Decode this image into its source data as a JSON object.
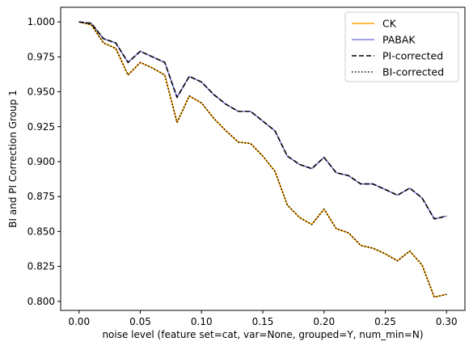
{
  "chart_data": {
    "type": "line",
    "xlabel": "noise level (feature set=cat, var=None, grouped=Y, num_min=N)",
    "ylabel": "BI and PI Correction Group 1",
    "xlim": [
      -0.015,
      0.315
    ],
    "ylim": [
      0.7935,
      1.0105
    ],
    "xticks": [
      0.0,
      0.05,
      0.1,
      0.15,
      0.2,
      0.25,
      0.3
    ],
    "xtick_labels": [
      "0.00",
      "0.05",
      "0.10",
      "0.15",
      "0.20",
      "0.25",
      "0.30"
    ],
    "yticks": [
      0.8,
      0.825,
      0.85,
      0.875,
      0.9,
      0.925,
      0.95,
      0.975,
      1.0
    ],
    "ytick_labels": [
      "0.800",
      "0.825",
      "0.850",
      "0.875",
      "0.900",
      "0.925",
      "0.950",
      "0.975",
      "1.000"
    ],
    "grid": false,
    "legend_position": "top-right",
    "x": [
      0.0,
      0.01,
      0.02,
      0.03,
      0.04,
      0.05,
      0.06,
      0.07,
      0.08,
      0.09,
      0.1,
      0.11,
      0.12,
      0.13,
      0.14,
      0.15,
      0.16,
      0.17,
      0.18,
      0.19,
      0.2,
      0.21,
      0.22,
      0.23,
      0.24,
      0.25,
      0.26,
      0.27,
      0.28,
      0.29,
      0.3
    ],
    "series": [
      {
        "name": "CK",
        "color": "#ffa500",
        "style": "solid",
        "values": [
          1.0,
          0.998,
          0.985,
          0.981,
          0.962,
          0.971,
          0.967,
          0.962,
          0.928,
          0.947,
          0.942,
          0.931,
          0.922,
          0.914,
          0.913,
          0.904,
          0.893,
          0.869,
          0.86,
          0.855,
          0.866,
          0.852,
          0.849,
          0.84,
          0.838,
          0.834,
          0.829,
          0.836,
          0.826,
          0.803,
          0.805
        ]
      },
      {
        "name": "PABAK",
        "color": "#8080e0",
        "style": "solid",
        "values": [
          1.0,
          0.999,
          0.988,
          0.985,
          0.971,
          0.979,
          0.975,
          0.971,
          0.946,
          0.961,
          0.957,
          0.948,
          0.941,
          0.936,
          0.936,
          0.929,
          0.922,
          0.904,
          0.898,
          0.895,
          0.903,
          0.892,
          0.89,
          0.884,
          0.884,
          0.88,
          0.876,
          0.881,
          0.874,
          0.859,
          0.861
        ]
      },
      {
        "name": "PI-corrected",
        "color": "#000000",
        "style": "dashed",
        "values": [
          1.0,
          0.999,
          0.988,
          0.985,
          0.971,
          0.979,
          0.975,
          0.971,
          0.946,
          0.961,
          0.957,
          0.948,
          0.941,
          0.936,
          0.936,
          0.929,
          0.922,
          0.904,
          0.898,
          0.895,
          0.903,
          0.892,
          0.89,
          0.884,
          0.884,
          0.88,
          0.876,
          0.881,
          0.874,
          0.859,
          0.861
        ]
      },
      {
        "name": "BI-corrected",
        "color": "#000000",
        "style": "dotted",
        "values": [
          1.0,
          0.998,
          0.985,
          0.981,
          0.962,
          0.971,
          0.967,
          0.962,
          0.928,
          0.947,
          0.942,
          0.931,
          0.922,
          0.914,
          0.913,
          0.904,
          0.893,
          0.869,
          0.86,
          0.855,
          0.866,
          0.852,
          0.849,
          0.84,
          0.838,
          0.834,
          0.829,
          0.836,
          0.826,
          0.803,
          0.805
        ]
      }
    ]
  }
}
